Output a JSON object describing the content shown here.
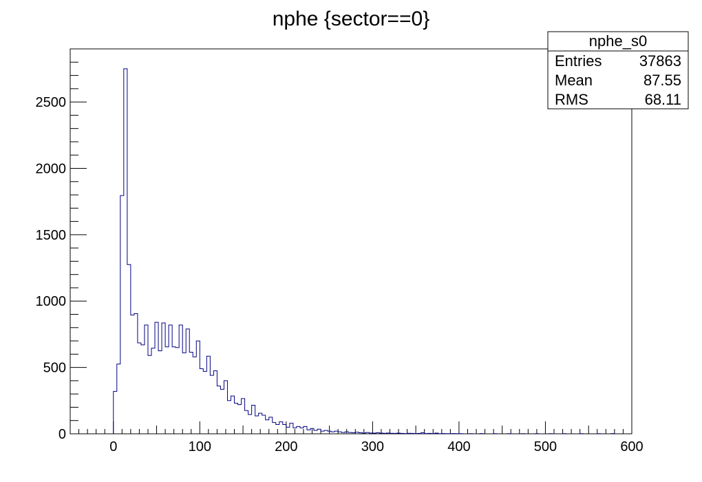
{
  "chart_data": {
    "type": "bar",
    "title": "nphe {sector==0}",
    "xlabel": "",
    "ylabel": "",
    "xlim": [
      -50,
      600
    ],
    "ylim": [
      0,
      2900
    ],
    "bin_width": 4,
    "x_ticks": [
      "0",
      "100",
      "200",
      "300",
      "400",
      "500",
      "600"
    ],
    "x_tick_values": [
      0,
      100,
      200,
      300,
      400,
      500,
      600
    ],
    "y_ticks": [
      "0",
      "500",
      "1000",
      "1500",
      "2000",
      "2500"
    ],
    "y_tick_values": [
      0,
      500,
      1000,
      1500,
      2000,
      2500
    ],
    "grid": false,
    "line_color": "#000080",
    "series": [
      {
        "values": [
          [
            0,
            320
          ],
          [
            4,
            525
          ],
          [
            8,
            1795
          ],
          [
            12,
            2750
          ],
          [
            16,
            1275
          ],
          [
            20,
            895
          ],
          [
            24,
            905
          ],
          [
            28,
            685
          ],
          [
            32,
            670
          ],
          [
            36,
            820
          ],
          [
            40,
            590
          ],
          [
            44,
            645
          ],
          [
            48,
            840
          ],
          [
            52,
            625
          ],
          [
            56,
            835
          ],
          [
            60,
            655
          ],
          [
            64,
            820
          ],
          [
            68,
            655
          ],
          [
            72,
            650
          ],
          [
            76,
            820
          ],
          [
            80,
            610
          ],
          [
            84,
            790
          ],
          [
            88,
            615
          ],
          [
            92,
            580
          ],
          [
            96,
            700
          ],
          [
            100,
            490
          ],
          [
            104,
            470
          ],
          [
            108,
            585
          ],
          [
            112,
            440
          ],
          [
            116,
            475
          ],
          [
            120,
            360
          ],
          [
            124,
            335
          ],
          [
            128,
            400
          ],
          [
            132,
            250
          ],
          [
            136,
            285
          ],
          [
            140,
            230
          ],
          [
            144,
            220
          ],
          [
            148,
            265
          ],
          [
            152,
            175
          ],
          [
            156,
            145
          ],
          [
            160,
            215
          ],
          [
            164,
            135
          ],
          [
            168,
            155
          ],
          [
            172,
            140
          ],
          [
            176,
            105
          ],
          [
            180,
            125
          ],
          [
            184,
            85
          ],
          [
            188,
            70
          ],
          [
            192,
            90
          ],
          [
            196,
            70
          ],
          [
            200,
            50
          ],
          [
            204,
            80
          ],
          [
            208,
            45
          ],
          [
            212,
            55
          ],
          [
            216,
            45
          ],
          [
            220,
            55
          ],
          [
            224,
            30
          ],
          [
            228,
            40
          ],
          [
            232,
            25
          ],
          [
            236,
            35
          ],
          [
            240,
            20
          ],
          [
            244,
            25
          ],
          [
            248,
            20
          ],
          [
            252,
            15
          ],
          [
            256,
            20
          ],
          [
            260,
            15
          ],
          [
            264,
            10
          ],
          [
            268,
            15
          ],
          [
            272,
            10
          ],
          [
            276,
            8
          ],
          [
            280,
            12
          ],
          [
            284,
            8
          ],
          [
            288,
            6
          ],
          [
            292,
            10
          ],
          [
            296,
            6
          ],
          [
            300,
            5
          ],
          [
            304,
            8
          ],
          [
            308,
            5
          ],
          [
            312,
            4
          ],
          [
            316,
            6
          ],
          [
            320,
            4
          ],
          [
            324,
            3
          ],
          [
            328,
            5
          ],
          [
            332,
            3
          ],
          [
            336,
            2
          ],
          [
            340,
            4
          ],
          [
            344,
            3
          ],
          [
            348,
            2
          ],
          [
            352,
            3
          ],
          [
            356,
            8
          ],
          [
            360,
            2
          ],
          [
            364,
            3
          ],
          [
            368,
            2
          ],
          [
            372,
            5
          ],
          [
            376,
            1
          ],
          [
            380,
            2
          ],
          [
            384,
            1
          ],
          [
            388,
            1
          ],
          [
            392,
            2
          ],
          [
            396,
            1
          ],
          [
            400,
            1
          ],
          [
            412,
            1
          ],
          [
            424,
            2
          ],
          [
            440,
            1
          ],
          [
            456,
            1
          ],
          [
            472,
            1
          ],
          [
            488,
            1
          ],
          [
            504,
            1
          ],
          [
            520,
            1
          ],
          [
            540,
            1
          ],
          [
            560,
            1
          ],
          [
            576,
            2
          ]
        ]
      }
    ],
    "stats_box": {
      "name": "nphe_s0",
      "rows": [
        {
          "label": "Entries",
          "value": "37863"
        },
        {
          "label": "Mean",
          "value": "87.55"
        },
        {
          "label": "RMS",
          "value": "68.11"
        }
      ]
    }
  }
}
